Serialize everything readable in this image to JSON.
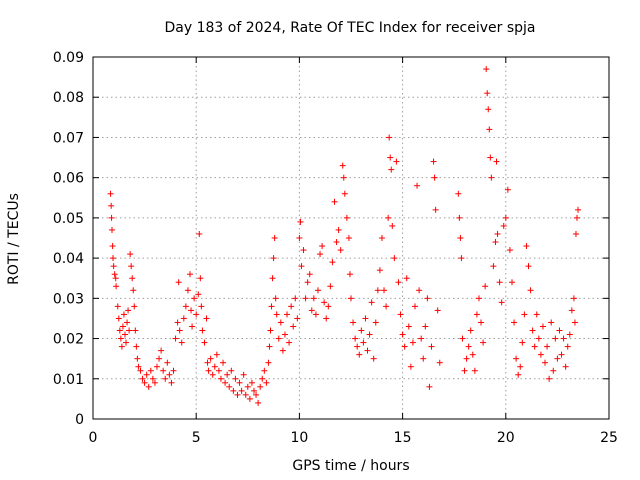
{
  "chart_data": {
    "type": "scatter",
    "title": "Day 183 of 2024, Rate Of TEC Index for receiver spja",
    "xlabel": "GPS time / hours",
    "ylabel": "ROTI / TECUs",
    "xlim": [
      0,
      25
    ],
    "ylim": [
      0,
      0.09
    ],
    "xticks": [
      0,
      5,
      10,
      15,
      20,
      25
    ],
    "xtick_labels": [
      "0",
      "5",
      "10",
      "15",
      "20",
      "25"
    ],
    "yticks": [
      0,
      0.01,
      0.02,
      0.03,
      0.04,
      0.05,
      0.06,
      0.07,
      0.08,
      0.09
    ],
    "ytick_labels": [
      "0",
      "0.01",
      "0.02",
      "0.03",
      "0.04",
      "0.05",
      "0.06",
      "0.07",
      "0.08",
      "0.09"
    ],
    "grid": true,
    "marker": "+",
    "color": "#ff0000",
    "series": [
      {
        "name": "ROTI",
        "points": [
          [
            0.85,
            0.056
          ],
          [
            0.88,
            0.053
          ],
          [
            0.9,
            0.05
          ],
          [
            0.92,
            0.047
          ],
          [
            0.95,
            0.043
          ],
          [
            0.97,
            0.04
          ],
          [
            1.0,
            0.038
          ],
          [
            1.05,
            0.036
          ],
          [
            1.1,
            0.035
          ],
          [
            1.12,
            0.033
          ],
          [
            1.2,
            0.028
          ],
          [
            1.25,
            0.025
          ],
          [
            1.3,
            0.022
          ],
          [
            1.35,
            0.02
          ],
          [
            1.4,
            0.018
          ],
          [
            1.45,
            0.023
          ],
          [
            1.5,
            0.026
          ],
          [
            1.55,
            0.021
          ],
          [
            1.6,
            0.019
          ],
          [
            1.65,
            0.024
          ],
          [
            1.7,
            0.027
          ],
          [
            1.75,
            0.022
          ],
          [
            1.8,
            0.041
          ],
          [
            1.85,
            0.038
          ],
          [
            1.9,
            0.035
          ],
          [
            1.95,
            0.032
          ],
          [
            2.0,
            0.028
          ],
          [
            2.05,
            0.022
          ],
          [
            2.1,
            0.018
          ],
          [
            2.15,
            0.015
          ],
          [
            2.2,
            0.013
          ],
          [
            2.3,
            0.012
          ],
          [
            2.4,
            0.01
          ],
          [
            2.5,
            0.009
          ],
          [
            2.6,
            0.011
          ],
          [
            2.7,
            0.008
          ],
          [
            2.8,
            0.012
          ],
          [
            2.9,
            0.01
          ],
          [
            3.0,
            0.009
          ],
          [
            3.1,
            0.013
          ],
          [
            3.2,
            0.015
          ],
          [
            3.3,
            0.017
          ],
          [
            3.4,
            0.012
          ],
          [
            3.5,
            0.01
          ],
          [
            3.6,
            0.014
          ],
          [
            3.7,
            0.011
          ],
          [
            3.8,
            0.009
          ],
          [
            3.9,
            0.012
          ],
          [
            4.0,
            0.02
          ],
          [
            4.1,
            0.024
          ],
          [
            4.15,
            0.034
          ],
          [
            4.2,
            0.022
          ],
          [
            4.3,
            0.019
          ],
          [
            4.4,
            0.025
          ],
          [
            4.5,
            0.028
          ],
          [
            4.6,
            0.032
          ],
          [
            4.7,
            0.036
          ],
          [
            4.75,
            0.027
          ],
          [
            4.8,
            0.023
          ],
          [
            4.9,
            0.03
          ],
          [
            5.0,
            0.026
          ],
          [
            5.1,
            0.031
          ],
          [
            5.15,
            0.046
          ],
          [
            5.2,
            0.035
          ],
          [
            5.25,
            0.028
          ],
          [
            5.3,
            0.022
          ],
          [
            5.4,
            0.019
          ],
          [
            5.5,
            0.025
          ],
          [
            5.55,
            0.014
          ],
          [
            5.6,
            0.012
          ],
          [
            5.7,
            0.015
          ],
          [
            5.8,
            0.011
          ],
          [
            5.9,
            0.013
          ],
          [
            6.0,
            0.016
          ],
          [
            6.1,
            0.012
          ],
          [
            6.2,
            0.01
          ],
          [
            6.3,
            0.014
          ],
          [
            6.4,
            0.009
          ],
          [
            6.5,
            0.011
          ],
          [
            6.6,
            0.008
          ],
          [
            6.7,
            0.012
          ],
          [
            6.8,
            0.007
          ],
          [
            6.9,
            0.01
          ],
          [
            7.0,
            0.006
          ],
          [
            7.1,
            0.009
          ],
          [
            7.2,
            0.007
          ],
          [
            7.3,
            0.011
          ],
          [
            7.4,
            0.006
          ],
          [
            7.5,
            0.008
          ],
          [
            7.6,
            0.005
          ],
          [
            7.7,
            0.009
          ],
          [
            7.8,
            0.007
          ],
          [
            7.9,
            0.006
          ],
          [
            8.0,
            0.004
          ],
          [
            8.1,
            0.008
          ],
          [
            8.2,
            0.01
          ],
          [
            8.3,
            0.012
          ],
          [
            8.4,
            0.009
          ],
          [
            8.5,
            0.014
          ],
          [
            8.55,
            0.018
          ],
          [
            8.6,
            0.022
          ],
          [
            8.65,
            0.028
          ],
          [
            8.7,
            0.035
          ],
          [
            8.75,
            0.04
          ],
          [
            8.8,
            0.045
          ],
          [
            8.85,
            0.03
          ],
          [
            8.9,
            0.026
          ],
          [
            9.0,
            0.02
          ],
          [
            9.1,
            0.024
          ],
          [
            9.2,
            0.017
          ],
          [
            9.3,
            0.021
          ],
          [
            9.4,
            0.026
          ],
          [
            9.5,
            0.019
          ],
          [
            9.6,
            0.028
          ],
          [
            9.7,
            0.023
          ],
          [
            9.8,
            0.03
          ],
          [
            9.9,
            0.025
          ],
          [
            10.0,
            0.045
          ],
          [
            10.05,
            0.049
          ],
          [
            10.1,
            0.038
          ],
          [
            10.2,
            0.042
          ],
          [
            10.3,
            0.03
          ],
          [
            10.4,
            0.034
          ],
          [
            10.5,
            0.036
          ],
          [
            10.6,
            0.027
          ],
          [
            10.7,
            0.03
          ],
          [
            10.8,
            0.026
          ],
          [
            10.9,
            0.032
          ],
          [
            11.0,
            0.041
          ],
          [
            11.1,
            0.043
          ],
          [
            11.2,
            0.029
          ],
          [
            11.3,
            0.025
          ],
          [
            11.4,
            0.028
          ],
          [
            11.5,
            0.033
          ],
          [
            11.6,
            0.039
          ],
          [
            11.7,
            0.054
          ],
          [
            11.8,
            0.044
          ],
          [
            11.9,
            0.047
          ],
          [
            12.0,
            0.042
          ],
          [
            12.1,
            0.063
          ],
          [
            12.15,
            0.06
          ],
          [
            12.2,
            0.056
          ],
          [
            12.3,
            0.05
          ],
          [
            12.4,
            0.045
          ],
          [
            12.45,
            0.036
          ],
          [
            12.5,
            0.03
          ],
          [
            12.6,
            0.024
          ],
          [
            12.7,
            0.02
          ],
          [
            12.8,
            0.018
          ],
          [
            12.9,
            0.016
          ],
          [
            13.0,
            0.022
          ],
          [
            13.1,
            0.019
          ],
          [
            13.2,
            0.025
          ],
          [
            13.3,
            0.017
          ],
          [
            13.4,
            0.021
          ],
          [
            13.5,
            0.029
          ],
          [
            13.6,
            0.015
          ],
          [
            13.7,
            0.024
          ],
          [
            13.8,
            0.032
          ],
          [
            13.9,
            0.037
          ],
          [
            14.0,
            0.045
          ],
          [
            14.1,
            0.032
          ],
          [
            14.2,
            0.028
          ],
          [
            14.3,
            0.05
          ],
          [
            14.35,
            0.07
          ],
          [
            14.4,
            0.065
          ],
          [
            14.45,
            0.062
          ],
          [
            14.5,
            0.048
          ],
          [
            14.6,
            0.04
          ],
          [
            14.7,
            0.064
          ],
          [
            14.8,
            0.034
          ],
          [
            14.9,
            0.026
          ],
          [
            15.0,
            0.021
          ],
          [
            15.1,
            0.018
          ],
          [
            15.2,
            0.035
          ],
          [
            15.3,
            0.023
          ],
          [
            15.4,
            0.013
          ],
          [
            15.5,
            0.019
          ],
          [
            15.6,
            0.028
          ],
          [
            15.7,
            0.058
          ],
          [
            15.8,
            0.032
          ],
          [
            15.9,
            0.02
          ],
          [
            16.0,
            0.015
          ],
          [
            16.1,
            0.023
          ],
          [
            16.2,
            0.03
          ],
          [
            16.3,
            0.008
          ],
          [
            16.4,
            0.018
          ],
          [
            16.5,
            0.064
          ],
          [
            16.55,
            0.06
          ],
          [
            16.6,
            0.052
          ],
          [
            16.7,
            0.027
          ],
          [
            16.8,
            0.014
          ],
          [
            17.7,
            0.056
          ],
          [
            17.75,
            0.05
          ],
          [
            17.8,
            0.045
          ],
          [
            17.85,
            0.04
          ],
          [
            17.9,
            0.02
          ],
          [
            18.0,
            0.012
          ],
          [
            18.1,
            0.015
          ],
          [
            18.2,
            0.018
          ],
          [
            18.3,
            0.022
          ],
          [
            18.4,
            0.016
          ],
          [
            18.5,
            0.012
          ],
          [
            18.6,
            0.026
          ],
          [
            18.7,
            0.03
          ],
          [
            18.8,
            0.024
          ],
          [
            18.9,
            0.019
          ],
          [
            19.0,
            0.033
          ],
          [
            19.05,
            0.087
          ],
          [
            19.1,
            0.081
          ],
          [
            19.15,
            0.077
          ],
          [
            19.2,
            0.072
          ],
          [
            19.25,
            0.065
          ],
          [
            19.3,
            0.06
          ],
          [
            19.4,
            0.038
          ],
          [
            19.5,
            0.044
          ],
          [
            19.55,
            0.064
          ],
          [
            19.6,
            0.046
          ],
          [
            19.7,
            0.034
          ],
          [
            19.8,
            0.029
          ],
          [
            19.9,
            0.048
          ],
          [
            20.0,
            0.05
          ],
          [
            20.1,
            0.057
          ],
          [
            20.2,
            0.042
          ],
          [
            20.3,
            0.034
          ],
          [
            20.4,
            0.024
          ],
          [
            20.5,
            0.015
          ],
          [
            20.6,
            0.011
          ],
          [
            20.7,
            0.013
          ],
          [
            20.8,
            0.019
          ],
          [
            20.9,
            0.026
          ],
          [
            21.0,
            0.043
          ],
          [
            21.1,
            0.038
          ],
          [
            21.2,
            0.032
          ],
          [
            21.3,
            0.022
          ],
          [
            21.4,
            0.018
          ],
          [
            21.5,
            0.026
          ],
          [
            21.6,
            0.02
          ],
          [
            21.7,
            0.016
          ],
          [
            21.8,
            0.023
          ],
          [
            21.9,
            0.014
          ],
          [
            22.0,
            0.018
          ],
          [
            22.1,
            0.01
          ],
          [
            22.2,
            0.024
          ],
          [
            22.3,
            0.012
          ],
          [
            22.4,
            0.02
          ],
          [
            22.5,
            0.015
          ],
          [
            22.6,
            0.022
          ],
          [
            22.7,
            0.016
          ],
          [
            22.8,
            0.02
          ],
          [
            22.9,
            0.013
          ],
          [
            23.0,
            0.018
          ],
          [
            23.1,
            0.021
          ],
          [
            23.2,
            0.027
          ],
          [
            23.3,
            0.03
          ],
          [
            23.35,
            0.024
          ],
          [
            23.4,
            0.046
          ],
          [
            23.45,
            0.05
          ],
          [
            23.5,
            0.052
          ]
        ]
      }
    ]
  }
}
